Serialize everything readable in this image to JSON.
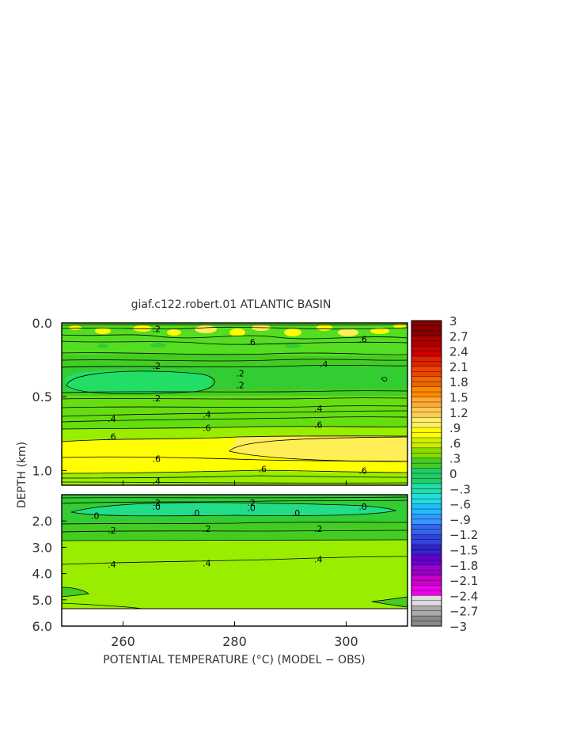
{
  "chart_data": {
    "type": "heatmap",
    "title": "giaf.c122.robert.01 ATLANTIC BASIN",
    "xlabel": "POTENTIAL TEMPERATURE (°C) (MODEL − OBS)",
    "ylabel": "DEPTH (km)",
    "x_ticks": [
      "260",
      "280",
      "300"
    ],
    "x_tick_values": [
      260,
      280,
      300
    ],
    "xlim": [
      249,
      311
    ],
    "upper_panel": {
      "y_ticks": [
        "0.0",
        "0.5",
        "1.0"
      ],
      "y_tick_values": [
        0.0,
        0.5,
        1.0
      ],
      "ylim": [
        0.0,
        1.1
      ]
    },
    "lower_panel": {
      "y_ticks": [
        "2.0",
        "3.0",
        "4.0",
        "5.0",
        "6.0"
      ],
      "y_tick_values": [
        2.0,
        3.0,
        4.0,
        5.0,
        6.0
      ],
      "ylim": [
        1.0,
        6.0
      ]
    },
    "colorbar": {
      "labels": [
        "3",
        "2.7",
        "2.4",
        "2.1",
        "1.8",
        "1.5",
        "1.2",
        ".9",
        ".6",
        ".3",
        "0",
        "−.3",
        "−.6",
        "−.9",
        "−1.2",
        "−1.5",
        "−1.8",
        "−2.1",
        "−2.4",
        "−2.7",
        "−3"
      ],
      "range": [
        -3,
        3
      ]
    },
    "contour_labels": [
      {
        "panel": "upper",
        "x": 266,
        "depth": 0.04,
        "text": ".2"
      },
      {
        "panel": "upper",
        "x": 283,
        "depth": 0.13,
        "text": ".6"
      },
      {
        "panel": "upper",
        "x": 303,
        "depth": 0.11,
        "text": ".6"
      },
      {
        "panel": "upper",
        "x": 266,
        "depth": 0.29,
        "text": ".2"
      },
      {
        "panel": "upper",
        "x": 281,
        "depth": 0.34,
        "text": ".2"
      },
      {
        "panel": "upper",
        "x": 281,
        "depth": 0.42,
        "text": ".2"
      },
      {
        "panel": "upper",
        "x": 296,
        "depth": 0.28,
        "text": ".4"
      },
      {
        "panel": "upper",
        "x": 266,
        "depth": 0.51,
        "text": ".2"
      },
      {
        "panel": "upper",
        "x": 295,
        "depth": 0.58,
        "text": ".4"
      },
      {
        "panel": "upper",
        "x": 258,
        "depth": 0.65,
        "text": ".4"
      },
      {
        "panel": "upper",
        "x": 275,
        "depth": 0.62,
        "text": ".4"
      },
      {
        "panel": "upper",
        "x": 275,
        "depth": 0.71,
        "text": ".6"
      },
      {
        "panel": "upper",
        "x": 295,
        "depth": 0.69,
        "text": ".6"
      },
      {
        "panel": "upper",
        "x": 258,
        "depth": 0.77,
        "text": ".6"
      },
      {
        "panel": "upper",
        "x": 266,
        "depth": 0.92,
        "text": ".6"
      },
      {
        "panel": "upper",
        "x": 285,
        "depth": 0.99,
        "text": ".6"
      },
      {
        "panel": "upper",
        "x": 303,
        "depth": 1.0,
        "text": ".6"
      },
      {
        "panel": "upper",
        "x": 266,
        "depth": 1.07,
        "text": ".4"
      },
      {
        "panel": "lower",
        "x": 266,
        "depth": 1.3,
        "text": ".2"
      },
      {
        "panel": "lower",
        "x": 283,
        "depth": 1.3,
        "text": ".2"
      },
      {
        "panel": "lower",
        "x": 266,
        "depth": 1.45,
        "text": ".0"
      },
      {
        "panel": "lower",
        "x": 283,
        "depth": 1.5,
        "text": ".0"
      },
      {
        "panel": "lower",
        "x": 303,
        "depth": 1.45,
        "text": ".0"
      },
      {
        "panel": "lower",
        "x": 255,
        "depth": 1.8,
        "text": ".0"
      },
      {
        "panel": "lower",
        "x": 273,
        "depth": 1.7,
        "text": ".0"
      },
      {
        "panel": "lower",
        "x": 291,
        "depth": 1.7,
        "text": ".0"
      },
      {
        "panel": "lower",
        "x": 258,
        "depth": 2.35,
        "text": ".2"
      },
      {
        "panel": "lower",
        "x": 275,
        "depth": 2.3,
        "text": ".2"
      },
      {
        "panel": "lower",
        "x": 295,
        "depth": 2.3,
        "text": ".2"
      },
      {
        "panel": "lower",
        "x": 258,
        "depth": 3.65,
        "text": ".4"
      },
      {
        "panel": "lower",
        "x": 275,
        "depth": 3.6,
        "text": ".4"
      },
      {
        "panel": "lower",
        "x": 295,
        "depth": 3.45,
        "text": ".4"
      }
    ]
  },
  "colors": {
    "bright_green": "#33cc33",
    "mid_green": "#55dd22",
    "yellow_green": "#99ee00",
    "yellow": "#ffff00",
    "light_yellow": "#ffee55",
    "cyan_green": "#22dd77",
    "colorbar": [
      "#880000",
      "#aa0000",
      "#cc0000",
      "#dd2200",
      "#ee4400",
      "#ee6600",
      "#ff8800",
      "#ffaa33",
      "#ffcc55",
      "#ffee66",
      "#ffff00",
      "#ccee00",
      "#88dd00",
      "#44cc22",
      "#22cc66",
      "#22ddaa",
      "#22dddd",
      "#22bbff",
      "#3399ff",
      "#3366ee",
      "#3344dd",
      "#3322cc",
      "#6600cc",
      "#9900cc",
      "#cc00cc",
      "#ee00ee",
      "#dddddd",
      "#aaaaaa",
      "#888888"
    ]
  }
}
